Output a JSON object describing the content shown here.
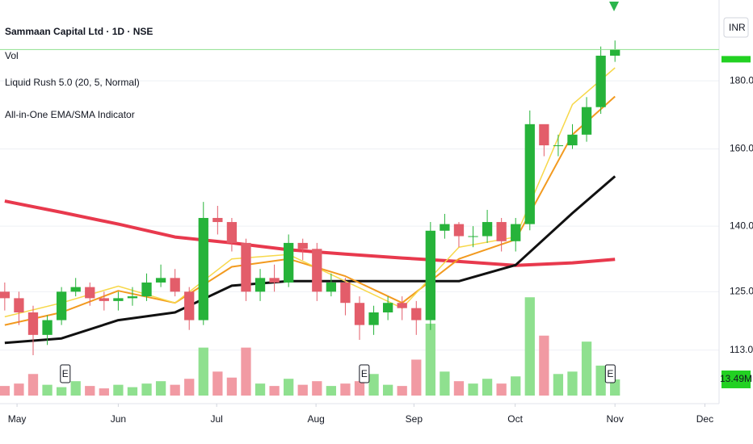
{
  "chart_data": {
    "type": "candlestick",
    "title": "Sammaan Capital Ltd · 1D · NSE",
    "indicators": [
      "Vol",
      "Liquid Rush 5.0 (20, 5, Normal)",
      "All-in-One EMA/SMA Indicator"
    ],
    "currency": "INR",
    "log_scale": true,
    "grid": true,
    "up_color": "#26b33a",
    "down_color": "#e35d6a",
    "ylim": [
      103,
      207
    ],
    "yticks": [
      {
        "value": 113,
        "label": "113.00"
      },
      {
        "value": 125,
        "label": "125.00"
      },
      {
        "value": 140,
        "label": "140.00"
      },
      {
        "value": 160,
        "label": "160.00"
      },
      {
        "value": 180,
        "label": "180.00"
      }
    ],
    "xlim": [
      -1,
      151
    ],
    "xticks": [
      {
        "value": 2.6,
        "label": "May"
      },
      {
        "value": 24,
        "label": "Jun"
      },
      {
        "value": 44.8,
        "label": "Jul"
      },
      {
        "value": 65.8,
        "label": "Aug"
      },
      {
        "value": 86.5,
        "label": "Sep"
      },
      {
        "value": 107.9,
        "label": "Oct"
      },
      {
        "value": 129,
        "label": "Nov"
      },
      {
        "value": 148,
        "label": "Dec"
      }
    ],
    "x": [
      0,
      3,
      6,
      9,
      12,
      15,
      18,
      21,
      24,
      27,
      30,
      33,
      36,
      39,
      42,
      45,
      48,
      51,
      54,
      57,
      60,
      63,
      66,
      69,
      72,
      75,
      78,
      81,
      84,
      87,
      90,
      93,
      96,
      99,
      102,
      105,
      108,
      111,
      114,
      117,
      120,
      123,
      126,
      129
    ],
    "open": [
      125,
      123.6,
      120.6,
      116,
      119,
      125,
      126,
      123.6,
      123,
      123.6,
      124,
      127,
      128,
      125,
      119,
      142,
      141,
      136,
      125,
      128,
      127,
      136,
      134.6,
      125,
      127,
      122.6,
      118,
      120.6,
      122.6,
      121.5,
      119,
      138.9,
      140.5,
      137.6,
      137.6,
      141,
      136.4,
      140.5,
      167,
      161,
      161,
      164,
      172,
      188
    ],
    "high": [
      127,
      125,
      122,
      120,
      126,
      128,
      127,
      125,
      125,
      126,
      129,
      131,
      130,
      126,
      146,
      145,
      142,
      137,
      130,
      131,
      138,
      137,
      136,
      129,
      128,
      124,
      122,
      124,
      124,
      123,
      141,
      143,
      141,
      140,
      144,
      142,
      142,
      171,
      166,
      164,
      167,
      175,
      191,
      193
    ],
    "low": [
      121,
      118,
      112,
      114,
      118,
      124,
      122,
      121,
      121,
      122,
      123,
      126,
      124,
      117,
      118,
      138,
      134,
      123,
      123,
      125,
      126,
      132,
      123,
      124,
      120,
      115,
      116,
      119,
      119,
      116,
      117,
      137,
      135,
      135,
      136,
      134,
      134,
      139,
      158,
      158,
      160,
      162,
      170,
      186
    ],
    "close": [
      123.6,
      120.6,
      116,
      119,
      125,
      126,
      123.6,
      123,
      123.6,
      124,
      127,
      128,
      125,
      119,
      142,
      141,
      136,
      125,
      128,
      127,
      136,
      134.6,
      125,
      127,
      122.6,
      118,
      120.6,
      122.6,
      121.5,
      119,
      138.9,
      140.5,
      137.6,
      137.6,
      141,
      136.4,
      140.5,
      167,
      161,
      161,
      164,
      172,
      188,
      190
    ],
    "volume": {
      "ylim": [
        0,
        330
      ],
      "up_color": "#8fe08f",
      "down_color": "#f19aa3",
      "values": [
        8,
        10,
        18,
        9,
        7,
        12,
        8,
        6,
        9,
        7,
        10,
        12,
        9,
        14,
        40,
        20,
        15,
        40,
        10,
        8,
        14,
        9,
        12,
        8,
        10,
        12,
        18,
        9,
        8,
        30,
        60,
        20,
        12,
        10,
        14,
        10,
        16,
        82,
        50,
        18,
        20,
        45,
        25,
        13.49
      ],
      "value_labels": [
        null,
        null,
        null,
        null,
        null,
        null,
        null,
        null,
        null,
        null,
        null,
        null,
        null,
        null,
        null,
        null,
        null,
        null,
        null,
        null,
        null,
        null,
        null,
        null,
        null,
        null,
        null,
        null,
        null,
        null,
        null,
        null,
        null,
        null,
        null,
        null,
        null,
        null,
        null,
        null,
        null,
        null,
        null,
        "13.49M"
      ]
    },
    "lines": [
      {
        "color": "#e8394d",
        "width": 4,
        "x": [
          0,
          12,
          24,
          36,
          48,
          60,
          72,
          84,
          96,
          108,
          120,
          129
        ],
        "values": [
          146.2,
          143.4,
          140.5,
          137.4,
          136,
          134.4,
          133.4,
          132.5,
          131.7,
          130.8,
          131.4,
          132.2
        ]
      },
      {
        "color": "#111111",
        "width": 3,
        "x": [
          0,
          12,
          24,
          36,
          48,
          60,
          72,
          84,
          96,
          108,
          120,
          129
        ],
        "values": [
          114.4,
          115.3,
          119,
          120.6,
          126.3,
          127.3,
          127.3,
          127.3,
          127.3,
          130.9,
          143.2,
          152.6
        ]
      },
      {
        "color": "#f29a1f",
        "width": 2,
        "x": [
          0,
          12,
          24,
          36,
          48,
          60,
          72,
          84,
          96,
          108,
          120,
          129
        ],
        "values": [
          118,
          120.6,
          125.2,
          122.6,
          130.5,
          132.3,
          128.4,
          122.6,
          132.3,
          136.8,
          164,
          175.2
        ]
      },
      {
        "color": "#f7d84a",
        "width": 1.5,
        "x": [
          0,
          12,
          24,
          36,
          48,
          60,
          72,
          84,
          96,
          108,
          120,
          129
        ],
        "values": [
          119.7,
          122.6,
          126.2,
          122.6,
          132.3,
          133.3,
          127.3,
          121.5,
          135,
          137.4,
          172.8,
          184.1
        ]
      }
    ],
    "events": {
      "label": "E",
      "x": [
        12.8,
        76,
        128
      ]
    }
  }
}
